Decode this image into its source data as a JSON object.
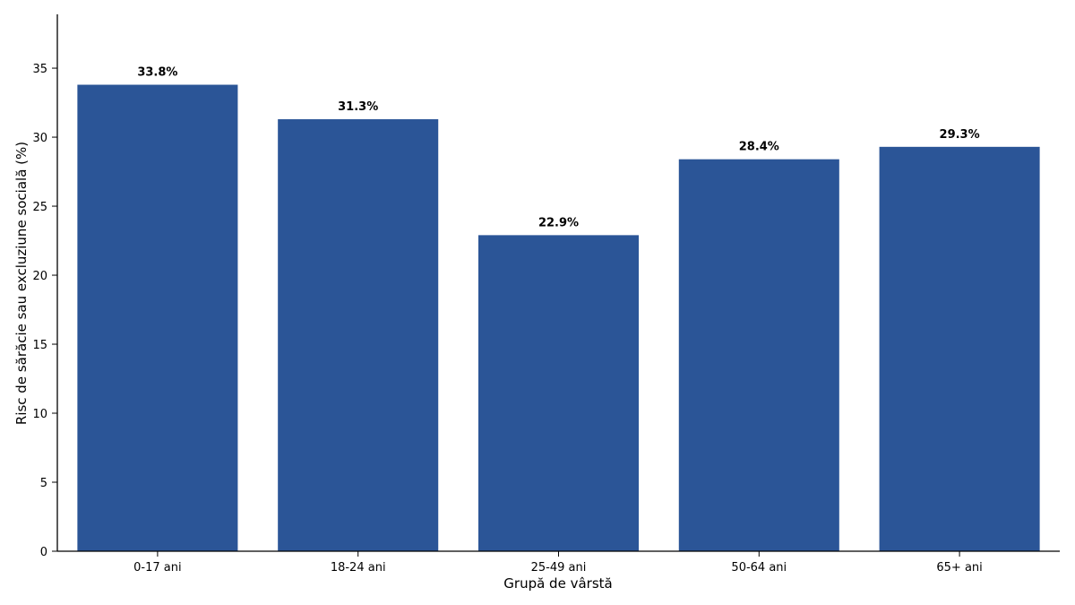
{
  "chart_data": {
    "type": "bar",
    "categories": [
      "0-17 ani",
      "18-24 ani",
      "25-49 ani",
      "50-64 ani",
      "65+ ani"
    ],
    "values": [
      33.8,
      31.3,
      22.9,
      28.4,
      29.3
    ],
    "data_labels": [
      "33.8%",
      "31.3%",
      "22.9%",
      "28.4%",
      "29.3%"
    ],
    "title": "",
    "xlabel": "Grupă de vârstă",
    "ylabel": "Risc de sărăcie sau excluziune socială (%)",
    "ylim": [
      0,
      38.9
    ],
    "yticks": [
      0,
      5,
      10,
      15,
      20,
      25,
      30,
      35
    ],
    "grid": false,
    "bar_color": "#2b5597"
  }
}
